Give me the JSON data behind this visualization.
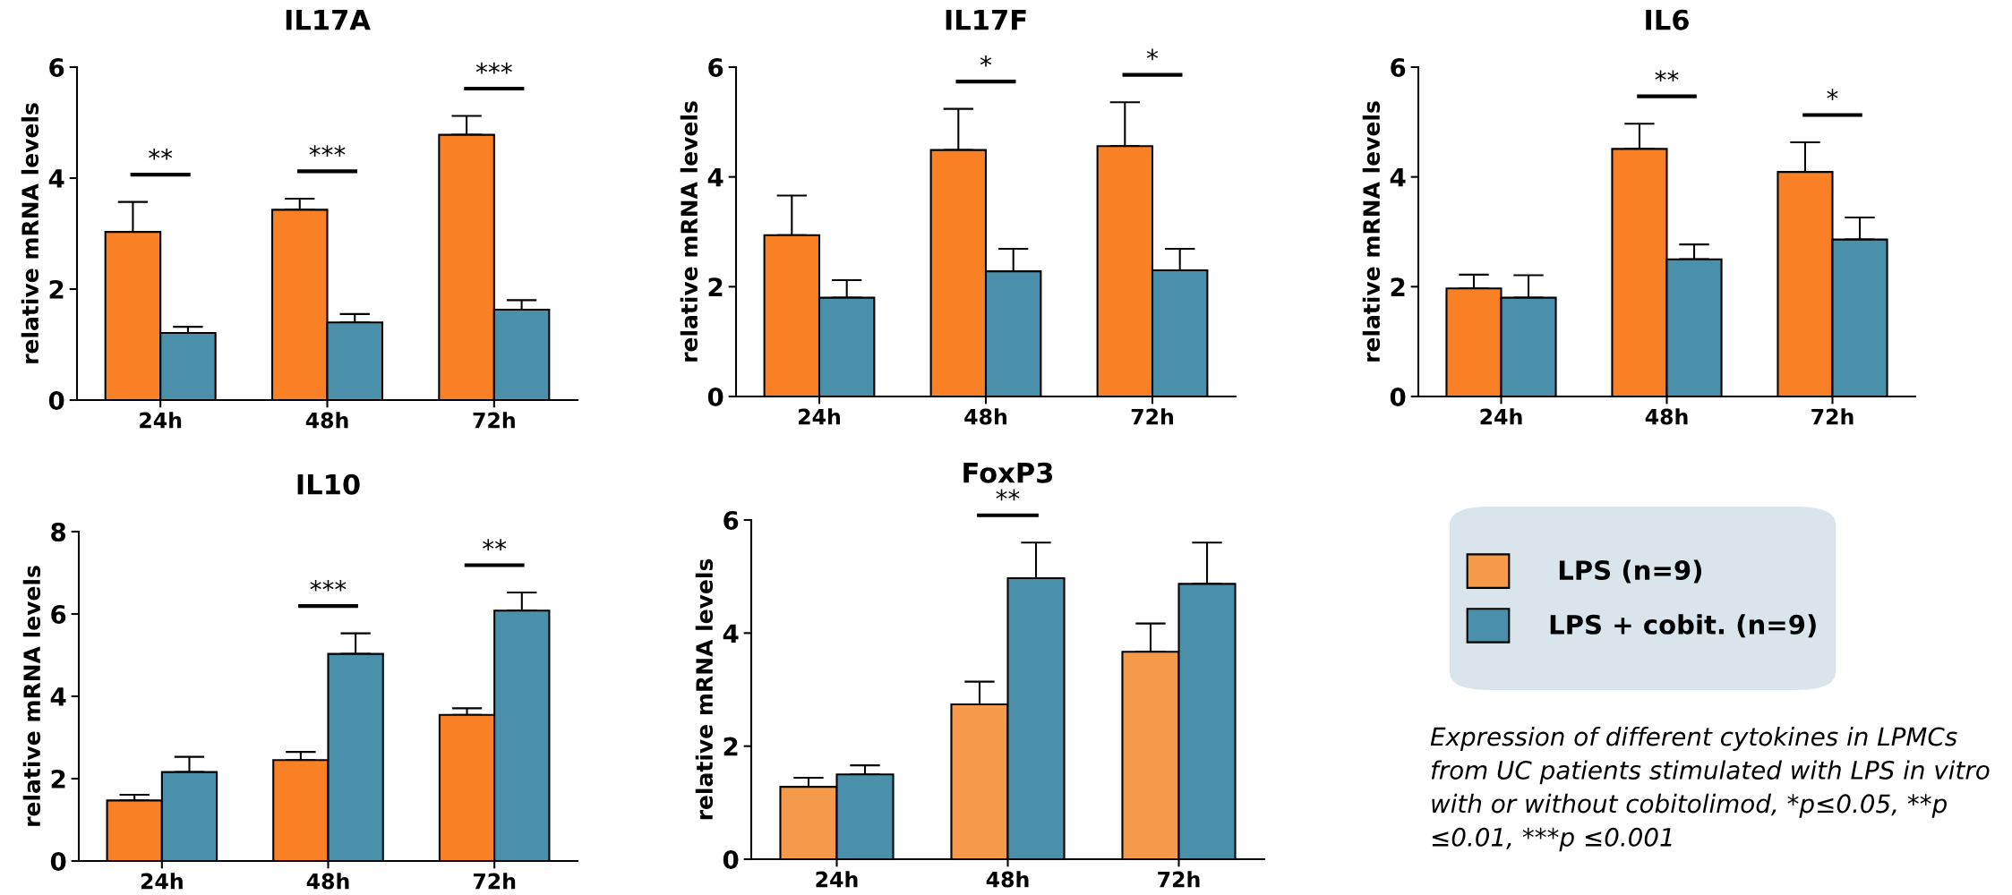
{
  "chart_data": [
    {
      "type": "bar",
      "title": "IL17A",
      "ylabel": "relative mRNA levels",
      "categories": [
        "24h",
        "48h",
        "72h"
      ],
      "ylim": [
        0,
        6
      ],
      "yticks": [
        0,
        2,
        4,
        6
      ],
      "grid": false,
      "legend": false,
      "series": [
        {
          "color": "#f98025",
          "values": [
            3.03,
            3.43,
            4.78
          ],
          "errors": [
            [
              3.03,
              3.57
            ],
            [
              3.43,
              3.63
            ],
            [
              4.78,
              5.12
            ]
          ]
        },
        {
          "color": "#4a90aa",
          "values": [
            1.21,
            1.4,
            1.63
          ],
          "errors": [
            [
              1.21,
              1.32
            ],
            [
              1.4,
              1.55
            ],
            [
              1.63,
              1.8
            ]
          ]
        }
      ],
      "annotations": [
        "**",
        "***",
        "***"
      ]
    },
    {
      "type": "bar",
      "title": "IL17F",
      "ylabel": "relative mRNA levels",
      "categories": [
        "24h",
        "48h",
        "72h"
      ],
      "ylim": [
        0,
        6
      ],
      "yticks": [
        0,
        2,
        4,
        6
      ],
      "grid": false,
      "legend": false,
      "series": [
        {
          "color": "#f98025",
          "values": [
            2.94,
            4.49,
            4.56
          ],
          "errors": [
            [
              2.94,
              3.66
            ],
            [
              4.49,
              5.24
            ],
            [
              4.56,
              5.36
            ]
          ]
        },
        {
          "color": "#4a90aa",
          "values": [
            1.8,
            2.28,
            2.3
          ],
          "errors": [
            [
              1.8,
              2.12
            ],
            [
              2.28,
              2.69
            ],
            [
              2.3,
              2.69
            ]
          ]
        }
      ],
      "annotations": [
        "*",
        "*"
      ]
    },
    {
      "type": "bar",
      "title": "IL6",
      "ylabel": "relative mRNA levels",
      "categories": [
        "24h",
        "48h",
        "72h"
      ],
      "ylim": [
        0,
        6
      ],
      "yticks": [
        0,
        2,
        4,
        6
      ],
      "grid": false,
      "legend": false,
      "series": [
        {
          "color": "#f98025",
          "values": [
            1.97,
            4.51,
            4.09
          ],
          "errors": [
            [
              1.97,
              2.22
            ],
            [
              4.51,
              4.97
            ],
            [
              4.09,
              4.63
            ]
          ]
        },
        {
          "color": "#4a90aa",
          "values": [
            1.8,
            2.5,
            2.86
          ],
          "errors": [
            [
              1.8,
              2.21
            ],
            [
              2.5,
              2.77
            ],
            [
              2.86,
              3.26
            ]
          ]
        }
      ],
      "annotations": [
        "**",
        "*"
      ]
    },
    {
      "type": "bar",
      "title": "IL10",
      "ylabel": "relative mRNA levels",
      "categories": [
        "24h",
        "48h",
        "72h"
      ],
      "ylim": [
        0,
        8
      ],
      "yticks": [
        0,
        2,
        4,
        6,
        8
      ],
      "grid": false,
      "legend": false,
      "series": [
        {
          "color": "#f98025",
          "values": [
            1.47,
            2.45,
            3.55
          ],
          "errors": [
            [
              1.47,
              1.61
            ],
            [
              2.45,
              2.65
            ],
            [
              3.55,
              3.71
            ]
          ]
        },
        {
          "color": "#4a90aa",
          "values": [
            2.16,
            5.03,
            6.08
          ],
          "errors": [
            [
              2.16,
              2.53
            ],
            [
              5.03,
              5.53
            ],
            [
              6.08,
              6.52
            ]
          ]
        }
      ],
      "annotations": [
        "***",
        "**"
      ]
    },
    {
      "type": "bar",
      "title": "FoxP3",
      "ylabel": "relative mRNA levels",
      "categories": [
        "24h",
        "48h",
        "72h"
      ],
      "ylim": [
        0,
        6
      ],
      "yticks": [
        0,
        2,
        4,
        6
      ],
      "grid": false,
      "legend": "right",
      "series": [
        {
          "name": " LPS (n=9)",
          "color": "#f5994a",
          "values": [
            1.28,
            2.74,
            3.67
          ],
          "errors": [
            [
              1.28,
              1.44
            ],
            [
              2.74,
              3.14
            ],
            [
              3.67,
              4.17
            ]
          ]
        },
        {
          "name": "LPS + cobit. (n=9)",
          "color": "#4a90aa",
          "values": [
            1.5,
            4.97,
            4.87
          ],
          "errors": [
            [
              1.5,
              1.66
            ],
            [
              4.97,
              5.6
            ],
            [
              4.87,
              5.6
            ]
          ]
        }
      ],
      "annotations": [
        "**",
        "Expression of different cytokines in LPMCs from UC patients stimulated with LPS in vitro with or without cobitolimod, *p≤0.05, **p ≤0.01, ***p ≤0.001"
      ]
    }
  ]
}
